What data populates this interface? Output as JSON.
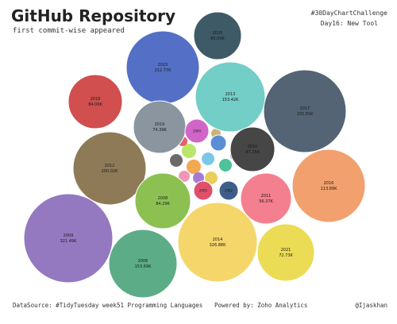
{
  "header": {
    "title": "GitHub Repository",
    "subtitle": "first commit-wise appeared",
    "tag_line1": "#30DayChartChallenge",
    "tag_line2": "Day16: New Tool"
  },
  "footer": {
    "source": "DataSource: #TidyTuesday week51 Programming Languages",
    "powered": "Powered by: Zoho Analytics",
    "handle": "@Ijaskhan"
  },
  "chart_data": {
    "type": "bubble",
    "title": "GitHub Repository",
    "subtitle": "first commit-wise appeared",
    "bubbles": [
      {
        "label": "2020",
        "value": "80.09K",
        "color": "#3e5a66"
      },
      {
        "label": "2015",
        "value": "212.77K",
        "color": "#5470c6"
      },
      {
        "label": "2013",
        "value": "153.42K",
        "color": "#72cec6"
      },
      {
        "label": "2017",
        "value": "155.55K",
        "color": "#546474"
      },
      {
        "label": "2018",
        "value": "84.06K",
        "color": "#d14f4f"
      },
      {
        "label": "2019",
        "value": "74.39K",
        "color": "#8a95a0"
      },
      {
        "label": "2010",
        "value": "87.25K",
        "color": "#464646"
      },
      {
        "label": "2012",
        "value": "200.02K",
        "color": "#8f7a58"
      },
      {
        "label": "2016",
        "value": "113.89K",
        "color": "#f2a06d"
      },
      {
        "label": "2008",
        "value": "84.29K",
        "color": "#8cc152"
      },
      {
        "label": "2011",
        "value": "56.37K",
        "color": "#f47f8e"
      },
      {
        "label": "2009",
        "value": "321.49K",
        "color": "#9479c0"
      },
      {
        "label": "2014",
        "value": "326.88K",
        "color": "#f5d66a"
      },
      {
        "label": "2006",
        "value": "153.69K",
        "color": "#5cad87"
      },
      {
        "label": "2021",
        "value": "72.73K",
        "color": "#ecdc55"
      },
      {
        "label": "2004",
        "value": "",
        "color": "#d065c7"
      },
      {
        "label": "2003",
        "value": "",
        "color": "#5a8fd6"
      },
      {
        "label": "2005",
        "value": "",
        "color": "#e0506a"
      },
      {
        "label": "2002",
        "value": "",
        "color": "#3d5f8a"
      }
    ]
  }
}
